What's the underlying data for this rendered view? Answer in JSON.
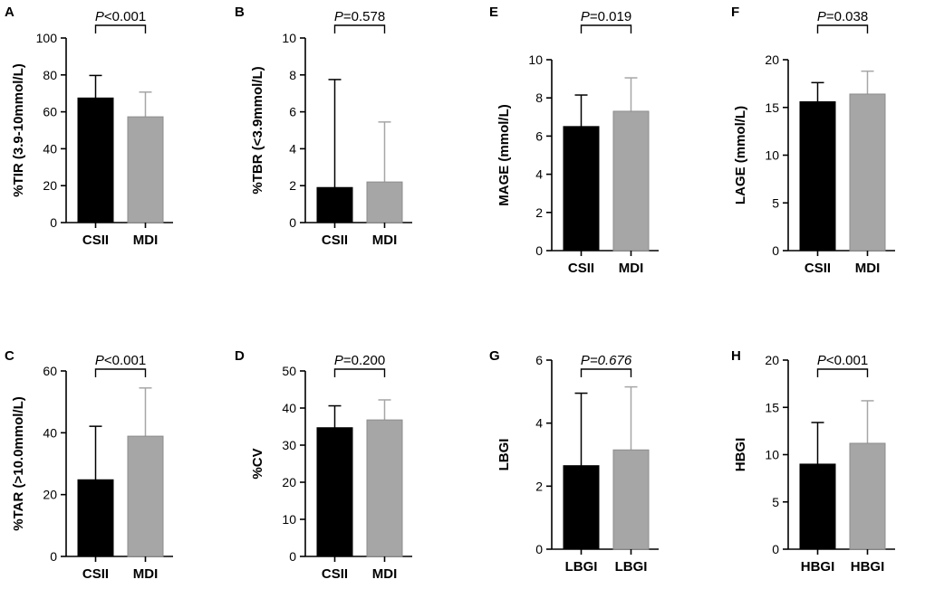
{
  "chart_data": [
    {
      "panel": "A",
      "type": "bar",
      "ylabel": "%TIR (3.9-10mmol/L)",
      "ylim": [
        0,
        100
      ],
      "yticks": [
        0,
        20,
        40,
        60,
        80,
        100
      ],
      "categories": [
        "CSII",
        "MDI"
      ],
      "values": [
        67.5,
        57.3
      ],
      "errors": [
        12.2,
        13.4
      ],
      "colors": [
        "#000000",
        "#a6a6a6"
      ],
      "pvalue": {
        "prefix": "P",
        "text": "<0.001",
        "italic_all": false
      }
    },
    {
      "panel": "B",
      "type": "bar",
      "ylabel": "%TBR (<3.9mmol/L)",
      "ylim": [
        0,
        10
      ],
      "yticks": [
        0,
        2,
        4,
        6,
        8,
        10
      ],
      "categories": [
        "CSII",
        "MDI"
      ],
      "values": [
        1.9,
        2.2
      ],
      "errors": [
        5.85,
        3.25
      ],
      "colors": [
        "#000000",
        "#a6a6a6"
      ],
      "pvalue": {
        "prefix": "P",
        "text": "=0.578",
        "italic_all": false
      }
    },
    {
      "panel": "E",
      "type": "bar",
      "ylabel": "MAGE (mmol/L)",
      "ylim": [
        0,
        10
      ],
      "yticks": [
        0,
        2,
        4,
        6,
        8,
        10
      ],
      "categories": [
        "CSII",
        "MDI"
      ],
      "values": [
        6.5,
        7.3
      ],
      "errors": [
        1.65,
        1.75
      ],
      "colors": [
        "#000000",
        "#a6a6a6"
      ],
      "pvalue": {
        "prefix": "P",
        "text": "=0.019",
        "italic_all": false
      }
    },
    {
      "panel": "F",
      "type": "bar",
      "ylabel": "LAGE (mmol/L)",
      "ylim": [
        0,
        20
      ],
      "yticks": [
        0,
        5,
        10,
        15,
        20
      ],
      "categories": [
        "CSII",
        "MDI"
      ],
      "values": [
        15.6,
        16.4
      ],
      "errors": [
        2.0,
        2.4
      ],
      "colors": [
        "#000000",
        "#a6a6a6"
      ],
      "pvalue": {
        "prefix": "P",
        "text": "=0.038",
        "italic_all": false
      }
    },
    {
      "panel": "C",
      "type": "bar",
      "ylabel": "%TAR (>10.0mmol/L)",
      "ylim": [
        0,
        60
      ],
      "yticks": [
        0,
        20,
        40,
        60
      ],
      "categories": [
        "CSII",
        "MDI"
      ],
      "values": [
        24.8,
        38.9
      ],
      "errors": [
        17.3,
        15.6
      ],
      "colors": [
        "#000000",
        "#a6a6a6"
      ],
      "pvalue": {
        "prefix": "P",
        "text": "<0.001",
        "italic_all": false
      }
    },
    {
      "panel": "D",
      "type": "bar",
      "ylabel": "%CV",
      "ylim": [
        0,
        50
      ],
      "yticks": [
        0,
        10,
        20,
        30,
        40,
        50
      ],
      "categories": [
        "CSII",
        "MDI"
      ],
      "values": [
        34.7,
        36.8
      ],
      "errors": [
        5.9,
        5.4
      ],
      "colors": [
        "#000000",
        "#a6a6a6"
      ],
      "pvalue": {
        "prefix": "P",
        "text": "=0.200",
        "italic_all": false
      }
    },
    {
      "panel": "G",
      "type": "bar",
      "ylabel": "LBGI",
      "ylim": [
        0,
        6
      ],
      "yticks": [
        0,
        2,
        4,
        6
      ],
      "categories": [
        "LBGI",
        "LBGI"
      ],
      "values": [
        2.65,
        3.15
      ],
      "errors": [
        2.3,
        2.0
      ],
      "colors": [
        "#000000",
        "#a6a6a6"
      ],
      "pvalue": {
        "prefix": "P",
        "text": "=0.676",
        "italic_all": true
      }
    },
    {
      "panel": "H",
      "type": "bar",
      "ylabel": "HBGI",
      "ylim": [
        0,
        20
      ],
      "yticks": [
        0,
        5,
        10,
        15,
        20
      ],
      "categories": [
        "HBGI",
        "HBGI"
      ],
      "values": [
        9.0,
        11.2
      ],
      "errors": [
        4.4,
        4.5
      ],
      "colors": [
        "#000000",
        "#a6a6a6"
      ],
      "pvalue": {
        "prefix": "P",
        "text": "<0.001",
        "italic_all": false
      }
    }
  ]
}
